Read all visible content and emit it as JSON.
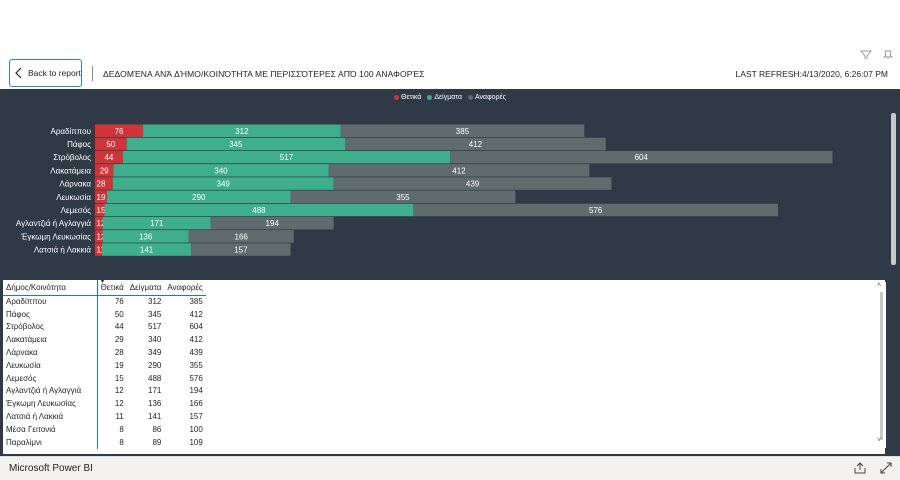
{
  "header": {
    "back_label": "Back to report",
    "title": "ΔΕΔΟΜΈΝΑ ΑΝΆ ΔΉΜΟ/ΚΟΙΝΌΤΗΤΑ ΜΕ ΠΕΡΙΣΣΌΤΕΡΕΣ ΑΠΌ 100 ΑΝΑΦΟΡΈΣ",
    "last_refresh": "LAST REFRESH:4/13/2020, 6:26:07 PM"
  },
  "top_icons": [
    "filter-icon",
    "pin-icon"
  ],
  "legend": {
    "items": [
      {
        "label": "Θετικά",
        "color": "#d13438"
      },
      {
        "label": "Δείγματα",
        "color": "#3fae8a"
      },
      {
        "label": "Αναφορές",
        "color": "#5f6b6d"
      }
    ]
  },
  "chart_data": {
    "type": "bar",
    "orientation": "horizontal",
    "stacked": true,
    "categories": [
      "Αραδίππου",
      "Πάφος",
      "Στρόβολος",
      "Λακατάμεια",
      "Λάρνακα",
      "Λευκωσία",
      "Λεμεσός",
      "Αγλαντζιά ή Αγλαγγιά",
      "Έγκωμη Λευκωσίας",
      "Λατσιά ή Λακκιά"
    ],
    "series": [
      {
        "name": "Θετικά",
        "color": "#d13438",
        "values": [
          76,
          50,
          44,
          29,
          28,
          19,
          15,
          12,
          12,
          11
        ]
      },
      {
        "name": "Δείγματα",
        "color": "#3fae8a",
        "values": [
          312,
          345,
          517,
          340,
          349,
          290,
          488,
          171,
          136,
          141
        ]
      },
      {
        "name": "Αναφορές",
        "color": "#5f6b6d",
        "values": [
          385,
          412,
          604,
          412,
          439,
          355,
          576,
          194,
          166,
          157
        ]
      }
    ],
    "legend": "top-center",
    "grid": false
  },
  "table": {
    "columns": [
      "Δήμος/Κοινότητα",
      "Θετικά",
      "Δείγματα",
      "Αναφορές"
    ],
    "rows": [
      [
        "Αραδίππου",
        "76",
        "312",
        "385"
      ],
      [
        "Πάφος",
        "50",
        "345",
        "412"
      ],
      [
        "Στρόβολος",
        "44",
        "517",
        "604"
      ],
      [
        "Λακατάμεια",
        "29",
        "340",
        "412"
      ],
      [
        "Λάρνακα",
        "28",
        "349",
        "439"
      ],
      [
        "Λευκωσία",
        "19",
        "290",
        "355"
      ],
      [
        "Λεμεσός",
        "15",
        "488",
        "576"
      ],
      [
        "Αγλαντζιά ή Αγλαγγιά",
        "12",
        "171",
        "194"
      ],
      [
        "Έγκωμη Λευκωσίας",
        "12",
        "136",
        "166"
      ],
      [
        "Λατσιά ή Λακκιά",
        "11",
        "141",
        "157"
      ],
      [
        "Μέσα Γειτονιά",
        "8",
        "86",
        "100"
      ],
      [
        "Παραλίμνι",
        "8",
        "89",
        "109"
      ]
    ]
  },
  "footer": {
    "brand": "Microsoft Power BI",
    "icons": [
      "share-icon",
      "fullscreen-icon"
    ]
  }
}
